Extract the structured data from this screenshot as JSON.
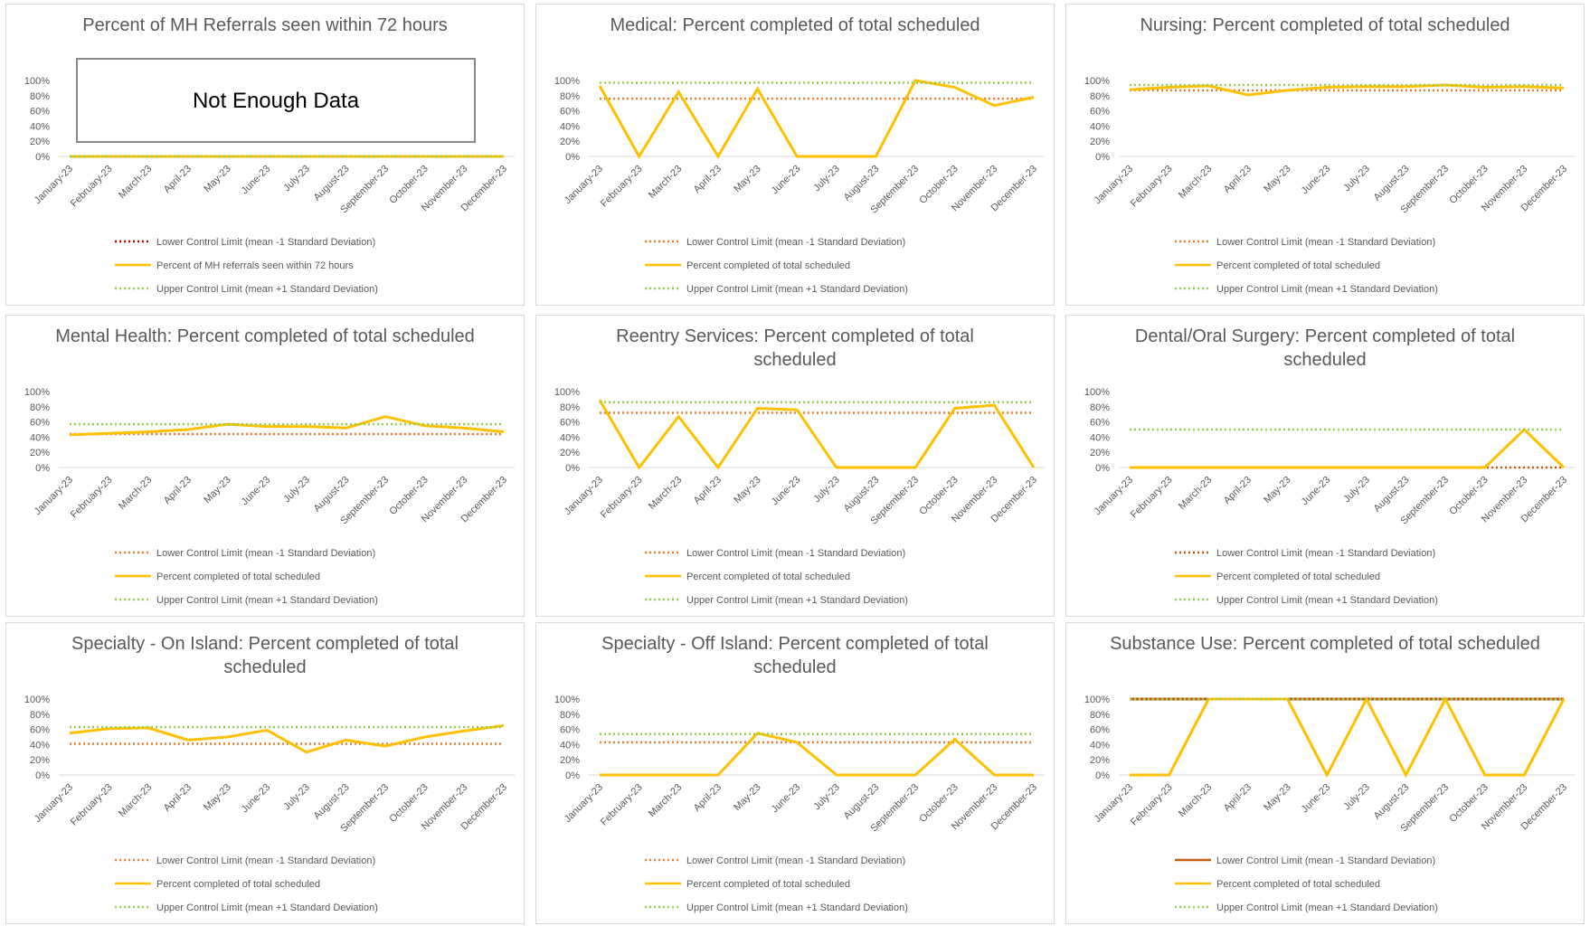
{
  "chart_data": [
    {
      "type": "line",
      "title": "Percent of MH Referrals seen within 72 hours",
      "annotation": "Not Enough Data",
      "categories": [
        "January-23",
        "February-23",
        "March-23",
        "April-23",
        "May-23",
        "June-23",
        "July-23",
        "August-23",
        "September-23",
        "October-23",
        "November-23",
        "December-23"
      ],
      "ylim": [
        0,
        100
      ],
      "yticks": [
        {
          "value": 0,
          "label": "0%"
        },
        {
          "value": 20,
          "label": "20%"
        },
        {
          "value": 40,
          "label": "40%"
        },
        {
          "value": 60,
          "label": "60%"
        },
        {
          "value": 80,
          "label": "80%"
        },
        {
          "value": 100,
          "label": "100%"
        }
      ],
      "series": [
        {
          "name": "Lower Control Limit (mean -1 Standard Deviation)",
          "color": "#c00000",
          "style": "dotted",
          "values": [
            0,
            0,
            0,
            0,
            0,
            0,
            0,
            0,
            0,
            0,
            0,
            0
          ]
        },
        {
          "name": "Percent of MH referrals seen within 72 hours",
          "color": "#ffc000",
          "style": "solid",
          "values": [
            0,
            0,
            0,
            0,
            0,
            0,
            0,
            0,
            0,
            0,
            0,
            0
          ]
        },
        {
          "name": "Upper Control Limit (mean +1 Standard Deviation)",
          "color": "#92d050",
          "style": "dotted",
          "values": [
            0,
            0,
            0,
            0,
            0,
            0,
            0,
            0,
            0,
            0,
            0,
            0
          ]
        }
      ]
    },
    {
      "type": "line",
      "title": "Medical: Percent completed of total scheduled",
      "categories": [
        "January-23",
        "February-23",
        "March-23",
        "April-23",
        "May-23",
        "June-23",
        "July-23",
        "August-23",
        "September-23",
        "October-23",
        "November-23",
        "December-23"
      ],
      "ylim": [
        0,
        100
      ],
      "yticks": [
        {
          "value": 0,
          "label": "0%"
        },
        {
          "value": 20,
          "label": "20%"
        },
        {
          "value": 40,
          "label": "40%"
        },
        {
          "value": 60,
          "label": "60%"
        },
        {
          "value": 80,
          "label": "80%"
        },
        {
          "value": 100,
          "label": "100%"
        }
      ],
      "series": [
        {
          "name": "Lower Control Limit (mean -1 Standard Deviation)",
          "color": "#ed7d31",
          "style": "dotted",
          "values": [
            76,
            76,
            76,
            76,
            76,
            76,
            76,
            76,
            76,
            76,
            76,
            76
          ]
        },
        {
          "name": "Percent completed of total scheduled",
          "color": "#ffc000",
          "style": "solid",
          "values": [
            93,
            0,
            85,
            0,
            89,
            0,
            0,
            0,
            100,
            91,
            67,
            78
          ]
        },
        {
          "name": "Upper Control Limit (mean +1 Standard Deviation)",
          "color": "#92d050",
          "style": "dotted",
          "values": [
            97,
            97,
            97,
            97,
            97,
            97,
            97,
            97,
            97,
            97,
            97,
            97
          ]
        }
      ]
    },
    {
      "type": "line",
      "title": "Nursing: Percent completed of total scheduled",
      "categories": [
        "January-23",
        "February-23",
        "March-23",
        "April-23",
        "May-23",
        "June-23",
        "July-23",
        "August-23",
        "September-23",
        "October-23",
        "November-23",
        "December-23"
      ],
      "ylim": [
        0,
        100
      ],
      "yticks": [
        {
          "value": 0,
          "label": "0%"
        },
        {
          "value": 20,
          "label": "20%"
        },
        {
          "value": 40,
          "label": "40%"
        },
        {
          "value": 60,
          "label": "60%"
        },
        {
          "value": 80,
          "label": "80%"
        },
        {
          "value": 100,
          "label": "100%"
        }
      ],
      "series": [
        {
          "name": "Lower Control Limit (mean -1 Standard Deviation)",
          "color": "#ed7d31",
          "style": "dotted",
          "values": [
            87,
            87,
            87,
            87,
            87,
            87,
            87,
            87,
            87,
            87,
            87,
            87
          ]
        },
        {
          "name": "Percent completed of total scheduled",
          "color": "#ffc000",
          "style": "solid",
          "values": [
            88,
            91,
            93,
            81,
            87,
            91,
            92,
            92,
            94,
            91,
            92,
            90
          ]
        },
        {
          "name": "Upper Control Limit (mean +1 Standard Deviation)",
          "color": "#92d050",
          "style": "dotted",
          "values": [
            94,
            94,
            94,
            94,
            94,
            94,
            94,
            94,
            94,
            94,
            94,
            94
          ]
        }
      ]
    },
    {
      "type": "line",
      "title": "Mental Health: Percent completed of total scheduled",
      "categories": [
        "January-23",
        "February-23",
        "March-23",
        "April-23",
        "May-23",
        "June-23",
        "July-23",
        "August-23",
        "September-23",
        "October-23",
        "November-23",
        "December-23"
      ],
      "ylim": [
        0,
        100
      ],
      "yticks": [
        {
          "value": 0,
          "label": "0%"
        },
        {
          "value": 20,
          "label": "20%"
        },
        {
          "value": 40,
          "label": "40%"
        },
        {
          "value": 60,
          "label": "60%"
        },
        {
          "value": 80,
          "label": "80%"
        },
        {
          "value": 100,
          "label": "100%"
        }
      ],
      "series": [
        {
          "name": "Lower Control Limit (mean -1 Standard Deviation)",
          "color": "#ed7d31",
          "style": "dotted",
          "values": [
            44,
            44,
            44,
            44,
            44,
            44,
            44,
            44,
            44,
            44,
            44,
            44
          ]
        },
        {
          "name": "Percent completed of total scheduled",
          "color": "#ffc000",
          "style": "solid",
          "values": [
            43,
            45,
            47,
            50,
            57,
            54,
            54,
            52,
            67,
            55,
            52,
            47
          ]
        },
        {
          "name": "Upper Control Limit (mean +1 Standard Deviation)",
          "color": "#92d050",
          "style": "dotted",
          "values": [
            57,
            57,
            57,
            57,
            57,
            57,
            57,
            57,
            57,
            57,
            57,
            57
          ]
        }
      ]
    },
    {
      "type": "line",
      "title": "Reentry Services: Percent completed of total scheduled",
      "categories": [
        "January-23",
        "February-23",
        "March-23",
        "April-23",
        "May-23",
        "June-23",
        "July-23",
        "August-23",
        "September-23",
        "October-23",
        "November-23",
        "December-23"
      ],
      "ylim": [
        0,
        100
      ],
      "yticks": [
        {
          "value": 0,
          "label": "0%"
        },
        {
          "value": 20,
          "label": "20%"
        },
        {
          "value": 40,
          "label": "40%"
        },
        {
          "value": 60,
          "label": "60%"
        },
        {
          "value": 80,
          "label": "80%"
        },
        {
          "value": 100,
          "label": "100%"
        }
      ],
      "series": [
        {
          "name": "Lower Control Limit (mean -1 Standard Deviation)",
          "color": "#ed7d31",
          "style": "dotted",
          "values": [
            72,
            72,
            72,
            72,
            72,
            72,
            72,
            72,
            72,
            72,
            72,
            72
          ]
        },
        {
          "name": "Percent completed of total scheduled",
          "color": "#ffc000",
          "style": "solid",
          "values": [
            89,
            0,
            67,
            0,
            78,
            76,
            0,
            0,
            0,
            78,
            82,
            0
          ]
        },
        {
          "name": "Upper Control Limit (mean +1 Standard Deviation)",
          "color": "#92d050",
          "style": "dotted",
          "values": [
            86,
            86,
            86,
            86,
            86,
            86,
            86,
            86,
            86,
            86,
            86,
            86
          ]
        }
      ]
    },
    {
      "type": "line",
      "title": "Dental/Oral Surgery: Percent completed of total scheduled",
      "categories": [
        "January-23",
        "February-23",
        "March-23",
        "April-23",
        "May-23",
        "June-23",
        "July-23",
        "August-23",
        "September-23",
        "October-23",
        "November-23",
        "December-23"
      ],
      "ylim": [
        0,
        100
      ],
      "yticks": [
        {
          "value": 0,
          "label": "0%"
        },
        {
          "value": 20,
          "label": "20%"
        },
        {
          "value": 40,
          "label": "40%"
        },
        {
          "value": 60,
          "label": "60%"
        },
        {
          "value": 80,
          "label": "80%"
        },
        {
          "value": 100,
          "label": "100%"
        }
      ],
      "series": [
        {
          "name": "Lower Control Limit (mean -1 Standard Deviation)",
          "color": "#c55a11",
          "style": "dotted",
          "values": [
            0,
            0,
            0,
            0,
            0,
            0,
            0,
            0,
            0,
            0,
            0,
            0
          ]
        },
        {
          "name": "Percent completed of total scheduled",
          "color": "#ffc000",
          "style": "solid",
          "values": [
            0,
            0,
            0,
            0,
            0,
            0,
            0,
            0,
            0,
            0,
            50,
            0
          ]
        },
        {
          "name": "Upper Control Limit (mean +1 Standard Deviation)",
          "color": "#92d050",
          "style": "dotted",
          "values": [
            50,
            50,
            50,
            50,
            50,
            50,
            50,
            50,
            50,
            50,
            50,
            50
          ]
        }
      ]
    },
    {
      "type": "line",
      "title": "Specialty - On Island: Percent completed of total scheduled",
      "categories": [
        "January-23",
        "February-23",
        "March-23",
        "April-23",
        "May-23",
        "June-23",
        "July-23",
        "August-23",
        "September-23",
        "October-23",
        "November-23",
        "December-23"
      ],
      "ylim": [
        0,
        100
      ],
      "yticks": [
        {
          "value": 0,
          "label": "0%"
        },
        {
          "value": 20,
          "label": "20%"
        },
        {
          "value": 40,
          "label": "40%"
        },
        {
          "value": 60,
          "label": "60%"
        },
        {
          "value": 80,
          "label": "80%"
        },
        {
          "value": 100,
          "label": "100%"
        }
      ],
      "series": [
        {
          "name": "Lower Control Limit (mean -1 Standard Deviation)",
          "color": "#ed7d31",
          "style": "dotted",
          "values": [
            41,
            41,
            41,
            41,
            41,
            41,
            41,
            41,
            41,
            41,
            41,
            41
          ]
        },
        {
          "name": "Percent completed of total scheduled",
          "color": "#ffc000",
          "style": "solid",
          "values": [
            55,
            61,
            62,
            46,
            50,
            59,
            30,
            46,
            38,
            50,
            58,
            65
          ]
        },
        {
          "name": "Upper Control Limit (mean +1 Standard Deviation)",
          "color": "#92d050",
          "style": "dotted",
          "values": [
            63,
            63,
            63,
            63,
            63,
            63,
            63,
            63,
            63,
            63,
            63,
            63
          ]
        }
      ]
    },
    {
      "type": "line",
      "title": "Specialty - Off Island: Percent completed of total scheduled",
      "categories": [
        "January-23",
        "February-23",
        "March-23",
        "April-23",
        "May-23",
        "June-23",
        "July-23",
        "August-23",
        "September-23",
        "October-23",
        "November-23",
        "December-23"
      ],
      "ylim": [
        0,
        100
      ],
      "yticks": [
        {
          "value": 0,
          "label": "0%"
        },
        {
          "value": 20,
          "label": "20%"
        },
        {
          "value": 40,
          "label": "40%"
        },
        {
          "value": 60,
          "label": "60%"
        },
        {
          "value": 80,
          "label": "80%"
        },
        {
          "value": 100,
          "label": "100%"
        }
      ],
      "series": [
        {
          "name": "Lower Control Limit (mean -1 Standard Deviation)",
          "color": "#ed7d31",
          "style": "dotted",
          "values": [
            43,
            43,
            43,
            43,
            43,
            43,
            43,
            43,
            43,
            43,
            43,
            43
          ]
        },
        {
          "name": "Percent completed of total scheduled",
          "color": "#ffc000",
          "style": "solid",
          "values": [
            0,
            0,
            0,
            0,
            55,
            43,
            0,
            0,
            0,
            47,
            0,
            0
          ]
        },
        {
          "name": "Upper Control Limit (mean +1 Standard Deviation)",
          "color": "#92d050",
          "style": "dotted",
          "values": [
            54,
            54,
            54,
            54,
            54,
            54,
            54,
            54,
            54,
            54,
            54,
            54
          ]
        }
      ]
    },
    {
      "type": "line",
      "title": "Substance Use: Percent completed of total scheduled",
      "categories": [
        "January-23",
        "February-23",
        "March-23",
        "April-23",
        "May-23",
        "June-23",
        "July-23",
        "August-23",
        "September-23",
        "October-23",
        "November-23",
        "December-23"
      ],
      "ylim": [
        0,
        100
      ],
      "yticks": [
        {
          "value": 0,
          "label": "0%"
        },
        {
          "value": 20,
          "label": "20%"
        },
        {
          "value": 40,
          "label": "40%"
        },
        {
          "value": 60,
          "label": "60%"
        },
        {
          "value": 80,
          "label": "80%"
        },
        {
          "value": 100,
          "label": "100%"
        }
      ],
      "series": [
        {
          "name": "Lower Control Limit (mean -1 Standard Deviation)",
          "color": "#c55a11",
          "style": "solid",
          "values": [
            100,
            100,
            100,
            100,
            100,
            100,
            100,
            100,
            100,
            100,
            100,
            100
          ]
        },
        {
          "name": "Percent completed of total scheduled",
          "color": "#ffc000",
          "style": "solid",
          "values": [
            0,
            0,
            100,
            100,
            100,
            0,
            100,
            0,
            100,
            0,
            0,
            100
          ]
        },
        {
          "name": "Upper Control Limit (mean +1 Standard Deviation)",
          "color": "#92d050",
          "style": "dotted",
          "values": [
            100,
            100,
            100,
            100,
            100,
            100,
            100,
            100,
            100,
            100,
            100,
            100
          ]
        }
      ]
    }
  ]
}
